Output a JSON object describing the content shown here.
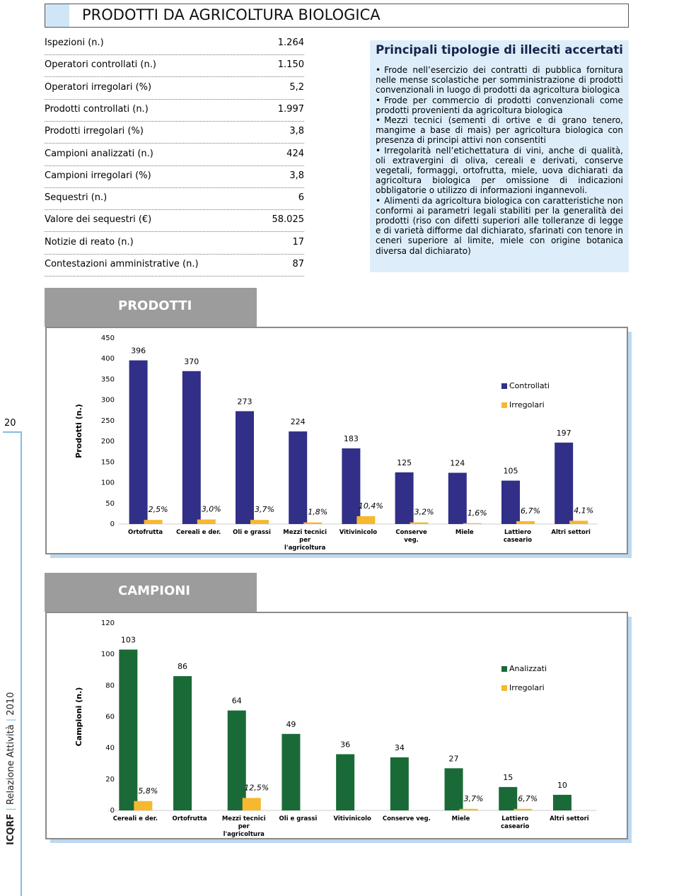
{
  "header": {
    "title": "PRODOTTI DA AGRICOLTURA BIOLOGICA"
  },
  "stats": {
    "rows": [
      [
        "Ispezioni (n.)",
        "1.264"
      ],
      [
        "Operatori controllati (n.)",
        "1.150"
      ],
      [
        "Operatori irregolari (%)",
        "5,2"
      ],
      [
        "Prodotti controllati (n.)",
        "1.997"
      ],
      [
        "Prodotti irregolari (%)",
        "3,8"
      ],
      [
        "Campioni analizzati (n.)",
        "424"
      ],
      [
        "Campioni irregolari (%)",
        "3,8"
      ],
      [
        "Sequestri (n.)",
        "6"
      ],
      [
        "Valore dei sequestri (€)",
        "58.025"
      ],
      [
        "Notizie di reato (n.)",
        "17"
      ],
      [
        "Contestazioni amministrative (n.)",
        "87"
      ]
    ]
  },
  "box": {
    "title": "Principali tipologie di illeciti accertati",
    "items": [
      "Frode nell’esercizio dei contratti di pubblica fornitura nelle mense scolastiche per somministrazione di prodotti convenzionali in luogo di prodotti da agricoltura biologica",
      "Frode per commercio di prodotti convenzionali come prodotti provenienti da agricoltura biologica",
      "Mezzi tecnici (sementi di ortive e di grano tenero, mangime a base di mais) per agricoltura biologica con presenza di principi attivi non consentiti",
      "Irregolarità nell’etichettatura di vini, anche di qualità, oli extravergini di oliva, cereali e derivati, conserve vegetali, formaggi, ortofrutta, miele, uova dichiarati da agricoltura biologica per omissione di indicazioni obbligatorie o utilizzo di informazioni ingannevoli.",
      "Alimenti da agricoltura biologica con caratteristiche non conformi ai parametri legali stabiliti per la generalità dei prodotti (riso con difetti superiori alle tolleranze di legge e di varietà difforme dal dichiarato, sfarinati con tenore in ceneri superiore al limite, miele con origine botanica diversa dal dichiarato)"
    ]
  },
  "sections": [
    "PRODOTTI",
    "CAMPIONI"
  ],
  "page_number": "20",
  "footer": {
    "org": "ICQRF",
    "report": "Relazione Attività",
    "year": "2010"
  },
  "chart_data": [
    {
      "type": "bar",
      "y_label": "Prodotti (n.)",
      "categories": [
        "Ortofrutta",
        "Cereali e der.",
        "Oli e grassi",
        "Mezzi tecnici per l'agricoltura",
        "Vitivinicolo",
        "Conserve veg.",
        "Miele",
        "Lattiero caseario",
        "Altri settori"
      ],
      "series": [
        {
          "name": "Controllati",
          "color": "#312f88",
          "values": [
            396,
            370,
            273,
            224,
            183,
            125,
            124,
            105,
            197
          ]
        },
        {
          "name": "Irregolari",
          "color": "#f6b82e",
          "values": [
            10,
            11,
            10,
            4,
            19,
            4,
            2,
            7,
            8
          ]
        }
      ],
      "annotations": [
        "2,5%",
        "3,0%",
        "3,7%",
        "1,8%",
        "10,4%",
        "3,2%",
        "1,6%",
        "6,7%",
        "4,1%"
      ],
      "ylim": [
        0,
        450
      ],
      "yticks": [
        0,
        50,
        100,
        150,
        200,
        250,
        300,
        350,
        400,
        450
      ],
      "legend": "right"
    },
    {
      "type": "bar",
      "y_label": "Campioni (n.)",
      "categories": [
        "Cereali e der.",
        "Ortofrutta",
        "Mezzi tecnici per l'agricoltura",
        "Oli e grassi",
        "Vitivinicolo",
        "Conserve veg.",
        "Miele",
        "Lattiero caseario",
        "Altri settori"
      ],
      "series": [
        {
          "name": "Analizzati",
          "color": "#1a6a38",
          "values": [
            103,
            86,
            64,
            49,
            36,
            34,
            27,
            15,
            10
          ]
        },
        {
          "name": "Irregolari",
          "color": "#f6b82e",
          "values": [
            6,
            0,
            8,
            0,
            0,
            0,
            1,
            1,
            0
          ]
        }
      ],
      "annotations": [
        "5,8%",
        null,
        "12,5%",
        null,
        null,
        null,
        "3,7%",
        "6,7%",
        null
      ],
      "ylim": [
        0,
        120
      ],
      "yticks": [
        0,
        20,
        40,
        60,
        80,
        100,
        120
      ],
      "legend": "right"
    }
  ]
}
